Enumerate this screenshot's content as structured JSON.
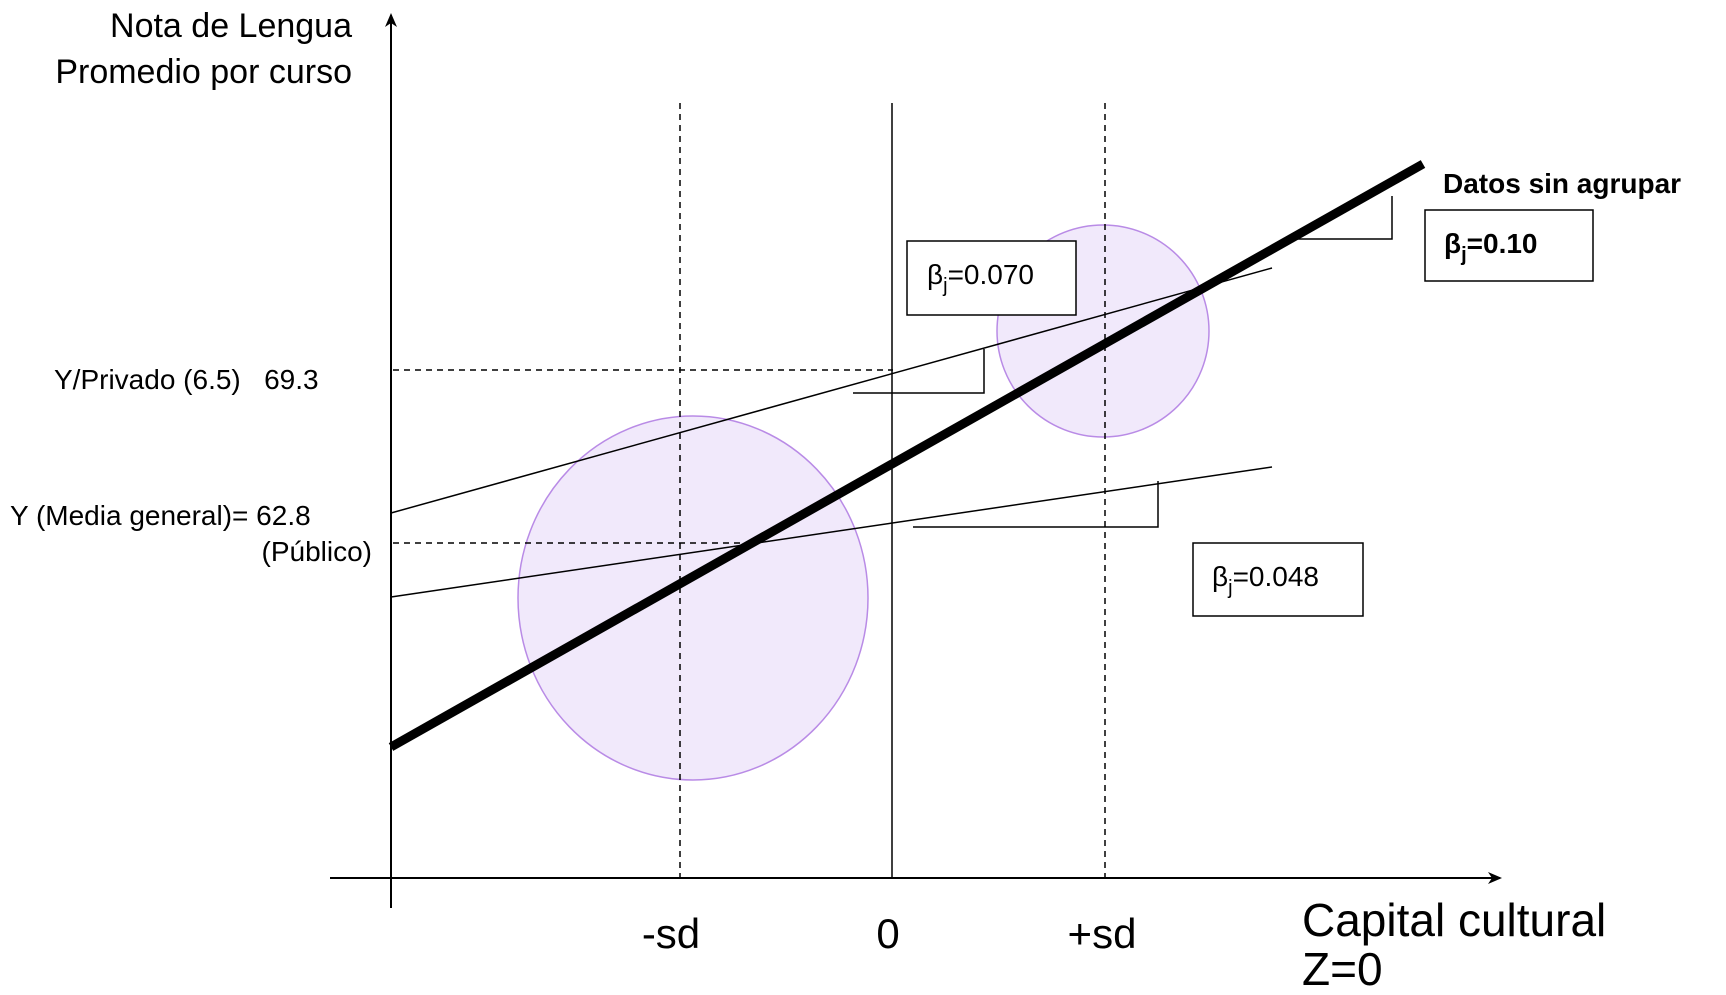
{
  "y_axis": {
    "label_line1": "Nota de Lengua",
    "label_line2": "Promedio por curso"
  },
  "x_axis": {
    "label_line1": "Capital cultural",
    "label_line2": "Z=0",
    "ticks": [
      "-sd",
      "0",
      "+sd"
    ]
  },
  "y_marks": {
    "privado": "Y/Privado (6.5)   69.3",
    "media_general": "Y (Media general)= 62.8",
    "publico": "(Público)"
  },
  "lines": {
    "ungrouped": {
      "title": "Datos sin agrupar",
      "beta_symbol": "β",
      "beta_sub": "j",
      "beta_value": "=0.10"
    },
    "upper_group": {
      "beta_symbol": "β",
      "beta_sub": "j",
      "beta_value": "=0.070"
    },
    "lower_group": {
      "beta_symbol": "β",
      "beta_sub": "j",
      "beta_value": "=0.048"
    }
  },
  "colors": {
    "circle_fill": "#f1e9fb",
    "circle_stroke": "#b98be6",
    "lines": "#000000",
    "ungrouped_line": "#000000"
  }
}
